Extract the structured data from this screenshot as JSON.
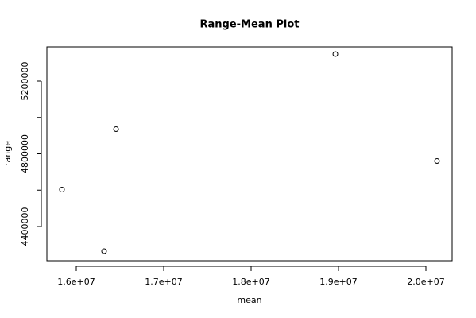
{
  "chart_data": {
    "type": "scatter",
    "title": "Range-Mean Plot",
    "x_label": "mean",
    "y_label": "range",
    "x": [
      15836000,
      16318000,
      16455000,
      18964000,
      20127000
    ],
    "values": [
      4603000,
      4264500,
      4935500,
      5348600,
      4760600
    ],
    "color": "#000000",
    "xlim": [
      15663636,
      20300000
    ],
    "xticks": [
      {
        "value": 16000000,
        "label": "1.6e+07"
      },
      {
        "value": 17000000,
        "label": "1.7e+07"
      },
      {
        "value": 18000000,
        "label": "1.8e+07"
      },
      {
        "value": 19000000,
        "label": "1.9e+07"
      },
      {
        "value": 20000000,
        "label": "2.0e+07"
      }
    ],
    "ylim": [
      4212000,
      5388000
    ],
    "yticks": [
      4400000,
      4800000,
      5200000
    ],
    "yticks_unlabeled": [
      4600000,
      5000000
    ]
  }
}
